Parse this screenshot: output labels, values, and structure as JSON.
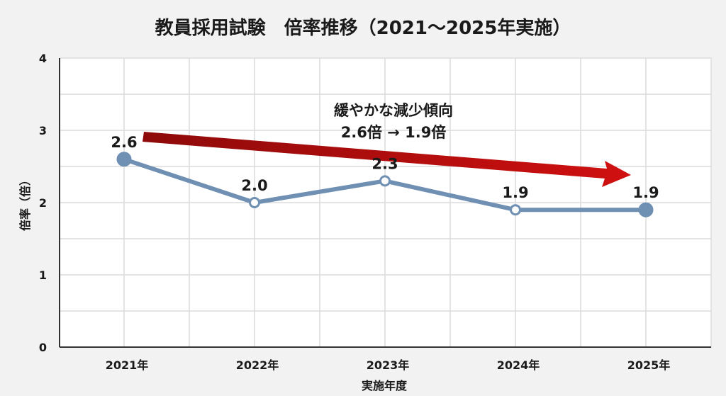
{
  "chart_data": {
    "type": "line",
    "title": "教員採用試験　倍率推移（2021〜2025年実施）",
    "xlabel": "実施年度",
    "ylabel": "倍率（倍）",
    "categories": [
      "2021年",
      "2022年",
      "2023年",
      "2024年",
      "2025年"
    ],
    "series": [
      {
        "values": [
          2.6,
          2.0,
          2.3,
          1.9,
          1.9
        ],
        "labels": [
          "2.6",
          "2.0",
          "2.3",
          "1.9",
          "1.9"
        ]
      }
    ],
    "ylim": [
      0,
      4
    ],
    "yticks": [
      "0",
      "1",
      "2",
      "3",
      "4"
    ],
    "grid": true,
    "annotation": {
      "line1": "緩やかな減少傾向",
      "line2": "2.6倍 → 1.9倍"
    },
    "colors": {
      "line": "#6f8fb3",
      "marker_fill": "#ffffff",
      "endpoint_fill": "#6f8fb3",
      "arrow": "#c00d0d",
      "grid": "#dcdcdc",
      "plot_bg": "#ffffff"
    }
  }
}
